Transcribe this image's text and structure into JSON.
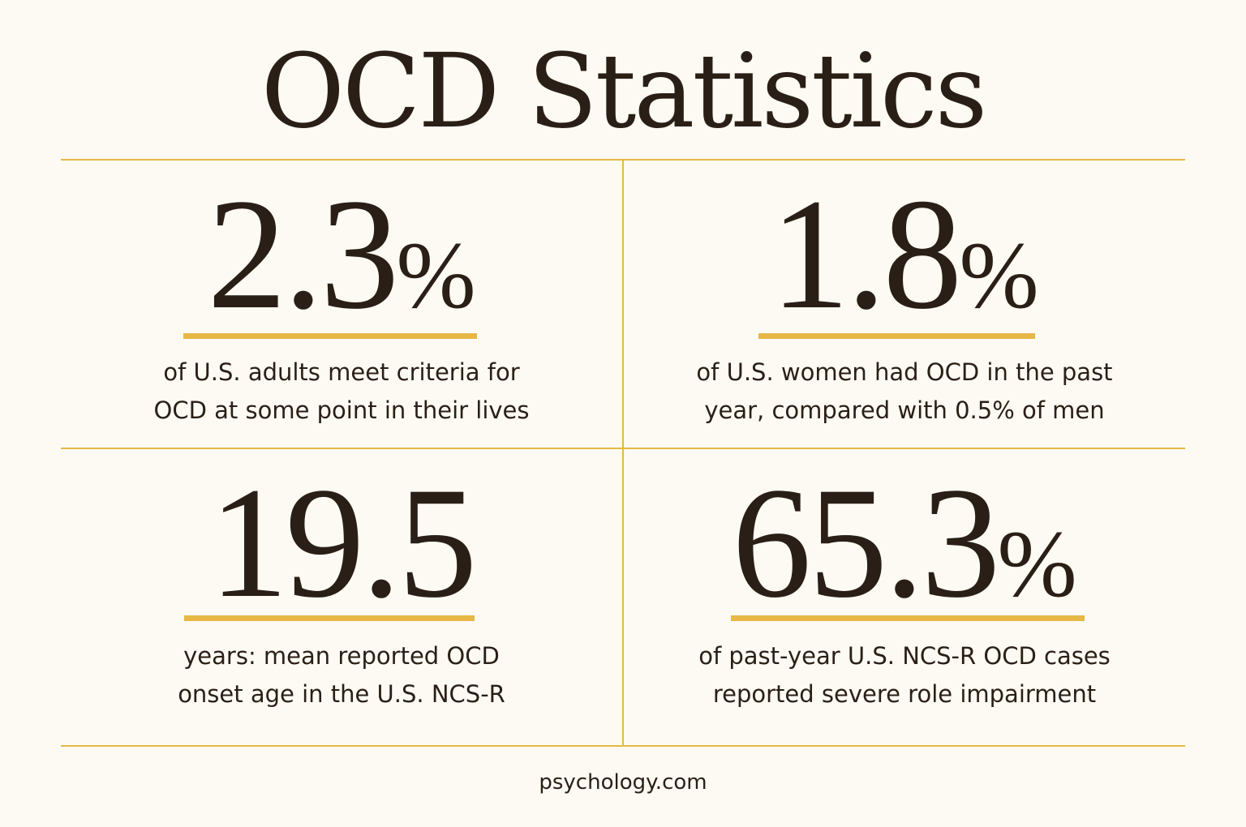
{
  "title": "OCD Statistics",
  "stats": [
    {
      "value": "2.3",
      "unit": "%",
      "line1": "of U.S. adults meet criteria for",
      "line2": "OCD at some point in their lives"
    },
    {
      "value": "1.8",
      "unit": "%",
      "line1": "of U.S. women had OCD in the past",
      "line2": "year, compared with 0.5% of men"
    },
    {
      "value": "19.5",
      "unit": "",
      "line1": "years: mean reported OCD",
      "line2": "onset age in the U.S. NCS-R"
    },
    {
      "value": "65.3",
      "unit": "%",
      "line1": "of past-year U.S. NCS-R OCD cases",
      "line2": "reported severe role impairment"
    }
  ],
  "footer": "psychology.com",
  "colors": {
    "background": "#fcfaf3",
    "accent": "#e7b845",
    "text": "#2a1f16"
  }
}
